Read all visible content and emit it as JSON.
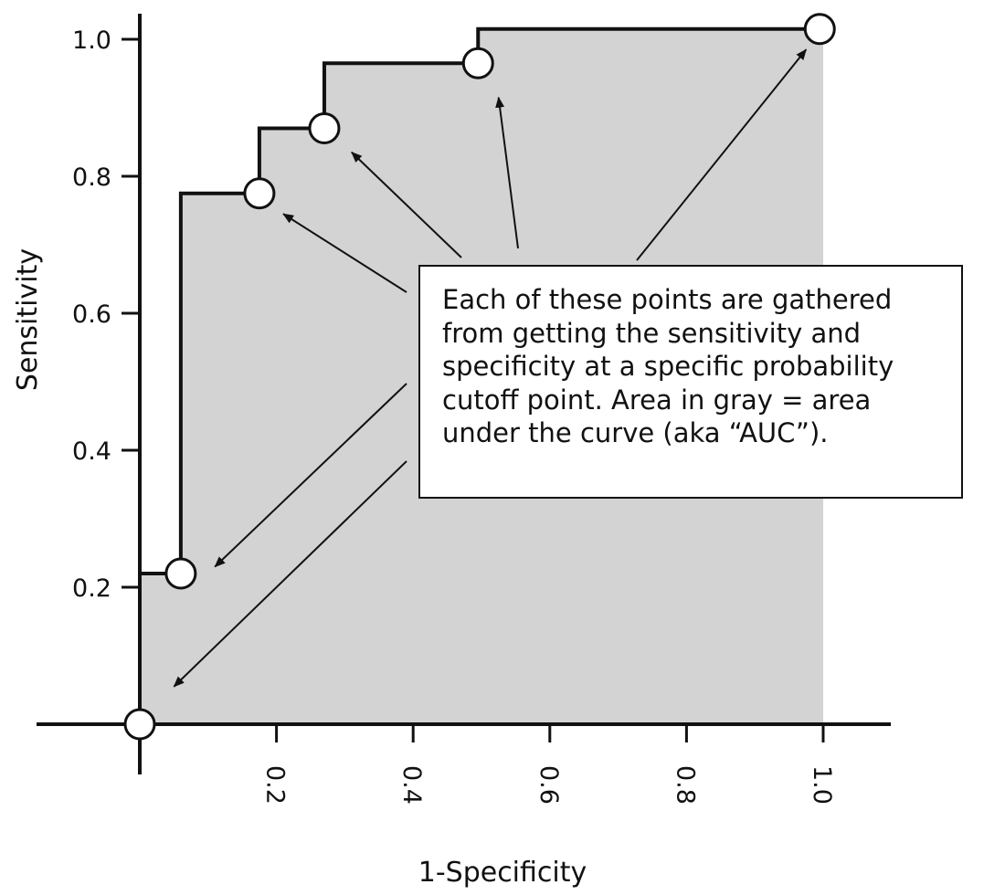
{
  "chart_data": {
    "type": "line",
    "xlabel": "1-Specificity",
    "ylabel": "Sensitivity",
    "xlim": [
      0,
      1.1
    ],
    "ylim": [
      0,
      1.0
    ],
    "x_ticks": [
      0.2,
      0.4,
      0.6,
      0.8,
      1.0
    ],
    "x_tick_labels": [
      "0.2",
      "0.4",
      "0.6",
      "0.8",
      "1.0"
    ],
    "y_ticks": [
      0.2,
      0.4,
      0.6,
      0.8,
      1.0
    ],
    "y_tick_labels": [
      "0.2",
      "0.4",
      "0.6",
      "0.8",
      "1.0"
    ],
    "grid": false,
    "fill_color": "#d3d3d3",
    "line_color": "#111111",
    "points": [
      {
        "x": 0.0,
        "y": 0.0
      },
      {
        "x": 0.06,
        "y": 0.22
      },
      {
        "x": 0.175,
        "y": 0.775
      },
      {
        "x": 0.27,
        "y": 0.87
      },
      {
        "x": 0.495,
        "y": 0.965
      },
      {
        "x": 0.995,
        "y": 1.015
      }
    ],
    "step_path": [
      {
        "x": 0.0,
        "y": 0.0
      },
      {
        "x": 0.0,
        "y": 0.22
      },
      {
        "x": 0.06,
        "y": 0.22
      },
      {
        "x": 0.06,
        "y": 0.775
      },
      {
        "x": 0.175,
        "y": 0.775
      },
      {
        "x": 0.175,
        "y": 0.87
      },
      {
        "x": 0.27,
        "y": 0.87
      },
      {
        "x": 0.27,
        "y": 0.965
      },
      {
        "x": 0.495,
        "y": 0.965
      },
      {
        "x": 0.495,
        "y": 1.015
      },
      {
        "x": 1.0,
        "y": 1.015
      }
    ],
    "annotation": {
      "lines": [
        "Each of these points are gathered",
        "from getting the sensitivity and",
        "specificity at a specific probability",
        "cutoff point. Area in gray = area",
        "under the curve (aka “AUC”)."
      ]
    }
  }
}
